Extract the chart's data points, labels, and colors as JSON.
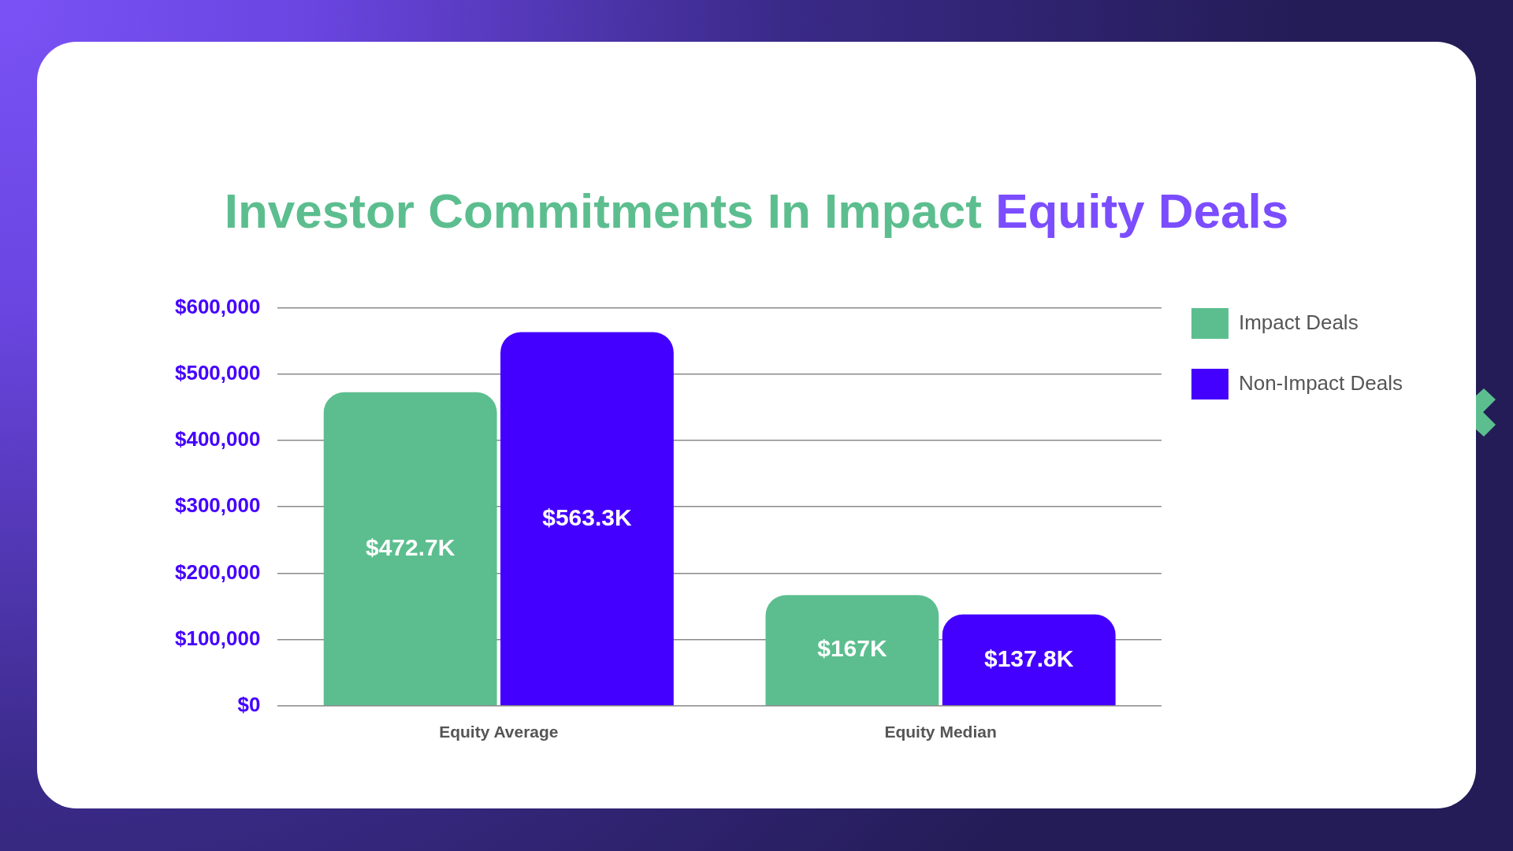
{
  "chart_data": {
    "type": "bar",
    "title": "Investor Commitments In Impact Equity Deals",
    "categories": [
      "Equity Average",
      "Equity Median"
    ],
    "series": [
      {
        "name": "Impact Deals",
        "color": "#5cbe8f",
        "values": [
          472700,
          167000
        ],
        "value_labels": [
          "$472.7K",
          "$167K"
        ]
      },
      {
        "name": "Non-Impact Deals",
        "color": "#4400ff",
        "values": [
          563300,
          137800
        ],
        "value_labels": [
          "$563.3K",
          "$137.8K"
        ]
      }
    ],
    "ylim": [
      0,
      600000
    ],
    "yticks": [
      {
        "value": 0,
        "label": "$0"
      },
      {
        "value": 100000,
        "label": "$100,000"
      },
      {
        "value": 200000,
        "label": "$200,000"
      },
      {
        "value": 300000,
        "label": "$300,000"
      },
      {
        "value": 400000,
        "label": "$400,000"
      },
      {
        "value": 500000,
        "label": "$500,000"
      },
      {
        "value": 600000,
        "label": "$600,000"
      }
    ],
    "grid": "y",
    "legend": "top right"
  }
}
